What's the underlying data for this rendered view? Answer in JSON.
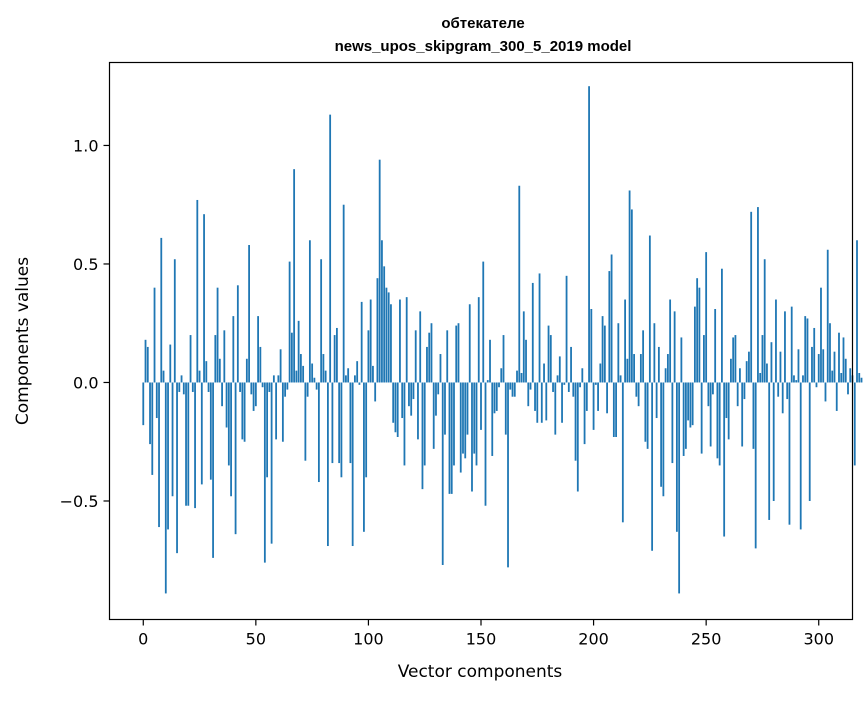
{
  "chart_data": {
    "type": "bar",
    "title_lines": [
      "обтекателе",
      "news_upos_skipgram_300_5_2019 model"
    ],
    "xlabel": "Vector components",
    "ylabel": "Components values",
    "xlim": [
      -15,
      315
    ],
    "ylim": [
      -1.0,
      1.35
    ],
    "xticks": [
      0,
      50,
      100,
      150,
      200,
      250,
      300
    ],
    "yticks": [
      -0.5,
      0.0,
      0.5,
      1.0
    ],
    "ytick_labels": [
      "−0.5",
      "0.0",
      "0.5",
      "1.0"
    ],
    "grid": false,
    "bar_color": "#1f77b4",
    "values": [
      -0.18,
      0.18,
      0.15,
      -0.26,
      -0.39,
      0.4,
      -0.15,
      -0.61,
      0.61,
      0.05,
      -0.89,
      -0.62,
      0.16,
      -0.48,
      0.52,
      -0.72,
      -0.04,
      0.03,
      -0.05,
      -0.52,
      -0.52,
      0.2,
      -0.04,
      -0.53,
      0.77,
      0.05,
      -0.43,
      0.71,
      0.09,
      -0.04,
      -0.41,
      -0.74,
      0.2,
      0.4,
      0.1,
      -0.1,
      0.22,
      -0.19,
      -0.35,
      -0.48,
      0.28,
      -0.64,
      0.41,
      -0.04,
      -0.24,
      -0.25,
      0.1,
      0.58,
      -0.05,
      -0.12,
      -0.1,
      0.28,
      0.15,
      -0.02,
      -0.76,
      -0.4,
      -0.04,
      -0.68,
      0.03,
      -0.24,
      0.03,
      0.14,
      -0.25,
      -0.06,
      -0.03,
      0.51,
      0.21,
      0.9,
      0.05,
      0.26,
      0.12,
      0.07,
      -0.33,
      -0.06,
      0.6,
      0.08,
      0.02,
      -0.03,
      -0.42,
      0.52,
      0.12,
      0.05,
      -0.69,
      1.13,
      -0.34,
      0.2,
      0.23,
      -0.34,
      -0.4,
      0.75,
      0.03,
      0.06,
      -0.34,
      -0.69,
      0.03,
      0.09,
      -0.01,
      0.34,
      -0.63,
      -0.4,
      0.22,
      0.35,
      0.07,
      -0.08,
      0.44,
      0.94,
      0.6,
      0.49,
      0.4,
      0.38,
      0.33,
      -0.17,
      -0.21,
      -0.23,
      0.35,
      -0.15,
      -0.35,
      0.36,
      -0.1,
      -0.14,
      -0.07,
      0.22,
      -0.24,
      0.3,
      -0.45,
      -0.35,
      0.15,
      0.21,
      0.25,
      -0.28,
      -0.14,
      -0.05,
      0.12,
      -0.77,
      -0.22,
      0.22,
      -0.47,
      -0.47,
      -0.35,
      0.24,
      0.25,
      -0.38,
      -0.3,
      -0.32,
      -0.22,
      0.33,
      -0.46,
      -0.3,
      -0.35,
      0.36,
      -0.2,
      0.51,
      -0.52,
      0.01,
      0.18,
      -0.31,
      -0.13,
      -0.12,
      -0.02,
      0.06,
      0.2,
      -0.22,
      -0.78,
      -0.03,
      -0.06,
      -0.06,
      0.05,
      0.83,
      0.04,
      0.3,
      0.18,
      -0.1,
      -0.03,
      0.42,
      -0.12,
      -0.17,
      0.46,
      -0.17,
      0.08,
      -0.16,
      0.24,
      0.2,
      -0.04,
      -0.22,
      0.03,
      0.11,
      -0.17,
      -0.01,
      0.45,
      -0.04,
      0.15,
      -0.06,
      -0.33,
      -0.46,
      -0.02,
      0.06,
      -0.26,
      -0.12,
      1.25,
      0.31,
      -0.2,
      -0.01,
      -0.12,
      0.08,
      0.28,
      0.24,
      -0.13,
      0.47,
      0.54,
      -0.23,
      -0.23,
      0.25,
      0.03,
      -0.59,
      0.35,
      0.1,
      0.81,
      0.73,
      0.12,
      -0.06,
      -0.1,
      0.12,
      0.22,
      -0.25,
      -0.28,
      0.62,
      -0.71,
      0.25,
      -0.15,
      0.15,
      -0.44,
      -0.48,
      0.06,
      0.12,
      0.35,
      -0.34,
      0.3,
      -0.63,
      -0.89,
      0.19,
      -0.31,
      -0.28,
      -0.16,
      -0.19,
      -0.18,
      0.32,
      0.44,
      0.4,
      -0.3,
      0.2,
      0.55,
      -0.1,
      -0.27,
      -0.05,
      0.31,
      -0.32,
      -0.35,
      0.48,
      -0.65,
      -0.15,
      -0.24,
      0.1,
      0.19,
      0.2,
      -0.1,
      0.06,
      -0.27,
      -0.07,
      0.09,
      0.13,
      0.72,
      -0.28,
      -0.7,
      0.74,
      0.04,
      0.2,
      0.52,
      0.08,
      -0.58,
      0.17,
      -0.5,
      0.35,
      -0.06,
      0.13,
      -0.13,
      0.3,
      -0.07,
      -0.6,
      0.32,
      0.03,
      0.01,
      0.14,
      -0.62,
      0.03,
      0.28,
      0.27,
      -0.5,
      0.15,
      0.23,
      -0.02,
      0.12,
      0.4,
      0.14,
      -0.08,
      0.56,
      0.25,
      0.05,
      0.13,
      -0.12,
      0.21,
      0.04,
      0.19,
      0.1,
      -0.05,
      0.06,
      0.03,
      -0.35,
      0.6,
      0.04,
      0.02
    ]
  }
}
